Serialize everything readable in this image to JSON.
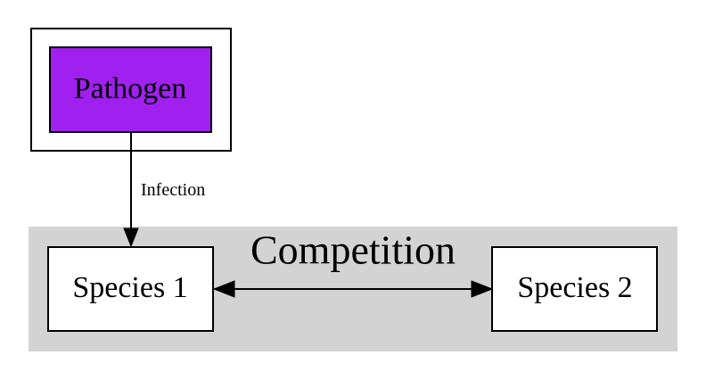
{
  "nodes": {
    "pathogen": {
      "label": "Pathogen",
      "fill": "#a020f0"
    },
    "species1": {
      "label": "Species 1",
      "fill": "#ffffff"
    },
    "species2": {
      "label": "Species 2",
      "fill": "#ffffff"
    }
  },
  "edges": {
    "infection": {
      "label": "Infection"
    }
  },
  "clusters": {
    "competition": {
      "label": "Competition",
      "fill": "#d3d3d3"
    }
  }
}
